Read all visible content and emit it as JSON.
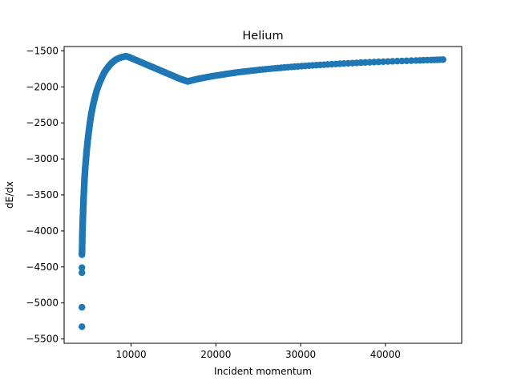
{
  "chart_data": {
    "type": "scatter",
    "title": "Helium",
    "xlabel": "Incident momentum",
    "ylabel": "dE/dx",
    "xlim": [
      2100,
      49000
    ],
    "ylim": [
      -5560,
      -1440
    ],
    "xticks": [
      10000,
      20000,
      30000,
      40000
    ],
    "xtick_labels": [
      "10000",
      "20000",
      "30000",
      "40000"
    ],
    "yticks": [
      -5500,
      -5000,
      -4500,
      -4000,
      -3500,
      -3000,
      -2500,
      -2000,
      -1500
    ],
    "ytick_labels": [
      "−5500",
      "−5000",
      "−4500",
      "−4000",
      "−3500",
      "−3000",
      "−2500",
      "−2000",
      "−1500"
    ],
    "grid": false,
    "legend": "none",
    "marker_color": "#1f77b4",
    "series": [
      {
        "points": [
          [
            4200,
            -5330
          ],
          [
            4200,
            -5060
          ],
          [
            4200,
            -4580
          ],
          [
            4200,
            -4510
          ],
          [
            4200,
            -4330
          ],
          [
            4220,
            -4260
          ],
          [
            4230,
            -4200
          ],
          [
            4240,
            -4130
          ],
          [
            4250,
            -4050
          ],
          [
            4270,
            -3970
          ],
          [
            4290,
            -3900
          ],
          [
            4310,
            -3830
          ],
          [
            4330,
            -3760
          ],
          [
            4350,
            -3690
          ],
          [
            4380,
            -3620
          ],
          [
            4400,
            -3540
          ],
          [
            4430,
            -3460
          ],
          [
            4460,
            -3390
          ],
          [
            4490,
            -3320
          ],
          [
            4520,
            -3250
          ],
          [
            4560,
            -3180
          ],
          [
            4600,
            -3110
          ],
          [
            4650,
            -3040
          ],
          [
            4700,
            -2970
          ],
          [
            4750,
            -2900
          ],
          [
            4810,
            -2830
          ],
          [
            4870,
            -2760
          ],
          [
            4940,
            -2690
          ],
          [
            5010,
            -2620
          ],
          [
            5090,
            -2550
          ],
          [
            5170,
            -2480
          ],
          [
            5260,
            -2410
          ],
          [
            5350,
            -2350
          ],
          [
            5450,
            -2290
          ],
          [
            5560,
            -2230
          ],
          [
            5680,
            -2170
          ],
          [
            5810,
            -2110
          ],
          [
            5950,
            -2050
          ],
          [
            6100,
            -2000
          ],
          [
            6260,
            -1950
          ],
          [
            6440,
            -1900
          ],
          [
            6630,
            -1850
          ],
          [
            6840,
            -1800
          ],
          [
            7070,
            -1760
          ],
          [
            7320,
            -1720
          ],
          [
            7600,
            -1680
          ],
          [
            7900,
            -1650
          ],
          [
            8230,
            -1620
          ],
          [
            8600,
            -1600
          ],
          [
            9000,
            -1585
          ],
          [
            9400,
            -1575
          ],
          [
            9800,
            -1590
          ],
          [
            10300,
            -1615
          ],
          [
            10800,
            -1640
          ],
          [
            11300,
            -1665
          ],
          [
            11800,
            -1690
          ],
          [
            12300,
            -1715
          ],
          [
            12800,
            -1740
          ],
          [
            13300,
            -1765
          ],
          [
            13800,
            -1790
          ],
          [
            14300,
            -1815
          ],
          [
            14800,
            -1840
          ],
          [
            15300,
            -1865
          ],
          [
            15800,
            -1890
          ],
          [
            16300,
            -1910
          ],
          [
            16700,
            -1925
          ],
          [
            17100,
            -1912
          ],
          [
            17600,
            -1898
          ],
          [
            18200,
            -1883
          ],
          [
            18900,
            -1867
          ],
          [
            19700,
            -1850
          ],
          [
            20600,
            -1833
          ],
          [
            21600,
            -1815
          ],
          [
            22700,
            -1797
          ],
          [
            23900,
            -1780
          ],
          [
            25200,
            -1763
          ],
          [
            26600,
            -1747
          ],
          [
            28100,
            -1731
          ],
          [
            29700,
            -1716
          ],
          [
            31400,
            -1702
          ],
          [
            33200,
            -1689
          ],
          [
            35100,
            -1676
          ],
          [
            37100,
            -1664
          ],
          [
            39200,
            -1653
          ],
          [
            41400,
            -1643
          ],
          [
            43600,
            -1634
          ],
          [
            45400,
            -1627
          ],
          [
            46800,
            -1622
          ]
        ]
      }
    ]
  }
}
